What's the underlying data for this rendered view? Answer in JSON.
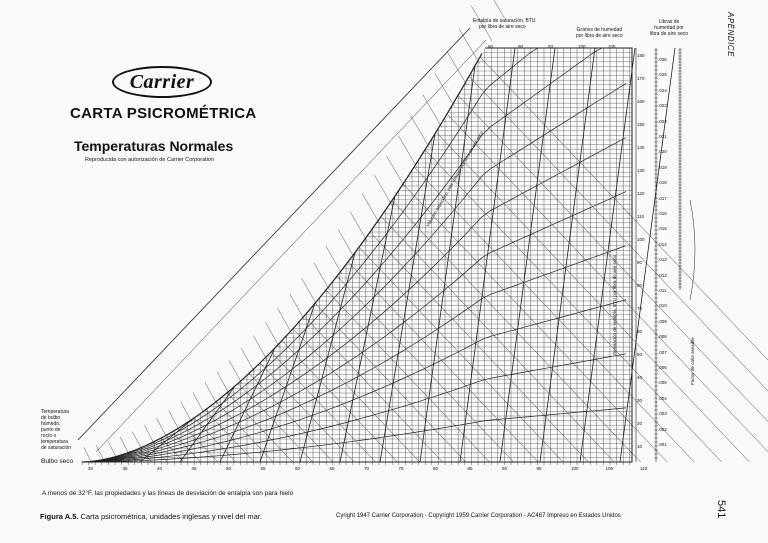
{
  "logo": "Carrier",
  "title": "CARTA PSICROMÉTRICA",
  "subtitle": "Temperaturas Normales",
  "reproduction": "Reproducida con autorización de Carrier Corporation",
  "header_side": "APÉNDICE",
  "labels": {
    "enthalpy_sat": "Entalpía de saturación, BTU",
    "enthalpy_sat_2": "por libra de aire seco",
    "grains": "Granos de humedad",
    "grains_2": "por libra de aire seco",
    "pounds": "Libras de",
    "pounds_2": "humedad por",
    "pounds_3": "libra de aire seco",
    "wet_bulb": [
      "Temperatura",
      "de bulbo",
      "húmedo,",
      "punto de",
      "rocío o",
      "temperatura",
      "de saturación"
    ],
    "dry_bulb": "Bulbo seco",
    "enthalpy_dev": "Desviación de entalpía, BTU por libra de aire seco",
    "sensible_heat": "Factor de calor sensible",
    "volume_sat": "Volumen específico, pies cúbicos por libra de aire seco"
  },
  "axis": {
    "dry_bulb_ticks": [
      "30",
      "35",
      "40",
      "45",
      "50",
      "55",
      "60",
      "65",
      "70",
      "75",
      "80",
      "85",
      "90",
      "95",
      "100",
      "105",
      "110"
    ],
    "grain_ticks": [
      "180",
      "170",
      "160",
      "150",
      "140",
      "130",
      "120",
      "110",
      "100",
      "90",
      "80",
      "70",
      "60",
      "50",
      "40",
      "30",
      "20",
      "10"
    ],
    "enthalpy_top_ticks": [
      "80",
      "90",
      "93",
      "100",
      "105"
    ],
    "pound_ticks": [
      ".026",
      ".025",
      ".024",
      ".023",
      ".022",
      ".021",
      ".020",
      ".019",
      ".018",
      ".017",
      ".016",
      ".015",
      ".014",
      ".013",
      ".012",
      ".011",
      ".010",
      ".009",
      ".008",
      ".007",
      ".006",
      ".005",
      ".004",
      ".003",
      ".002",
      ".001"
    ]
  },
  "note": "A menos de 32°F, las propiedades y las líneas de desviación de entalpía son para hielo",
  "caption": {
    "figure": "Figura A.5.",
    "text": "Carta psicrométrica, unidades inglesas y nivel del mar."
  },
  "copyright": "Cyright 1947 Carrier Corporation - Copyright 1959 Carrier Corporation - AC467 Impreso en Estados Unidos",
  "page_number": "541"
}
